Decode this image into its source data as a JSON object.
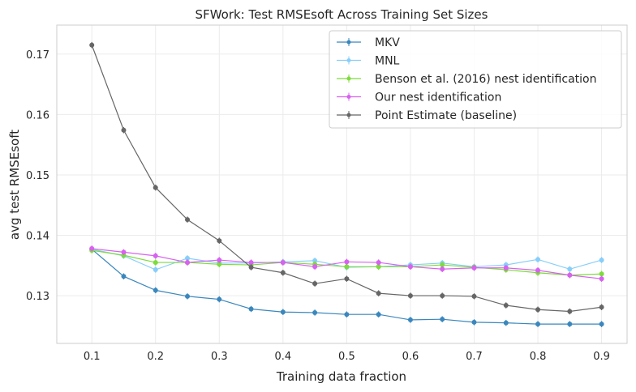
{
  "chart_data": {
    "type": "line",
    "title": "SFWork: Test RMSEsoft Across Training Set Sizes",
    "xlabel": "Training data fraction",
    "ylabel": "avg test RMSEsoft",
    "xlim": [
      0.045,
      0.94
    ],
    "ylim": [
      0.1221,
      0.1748
    ],
    "xticks": [
      "0.1",
      "0.2",
      "0.3",
      "0.4",
      "0.5",
      "0.6",
      "0.7",
      "0.8",
      "0.9"
    ],
    "yticks": [
      "0.13",
      "0.14",
      "0.15",
      "0.16",
      "0.17"
    ],
    "grid": true,
    "legend_position": "top-right",
    "error_bar": 0.0005,
    "x": [
      0.1,
      0.15,
      0.2,
      0.25,
      0.3,
      0.35,
      0.4,
      0.45,
      0.5,
      0.55,
      0.6,
      0.65,
      0.7,
      0.75,
      0.8,
      0.85,
      0.9
    ],
    "series": [
      {
        "name": "MKV",
        "color": "#3a87bd",
        "values": [
          0.1377,
          0.1332,
          0.1309,
          0.1299,
          0.1294,
          0.1278,
          0.1273,
          0.1272,
          0.1269,
          0.1269,
          0.126,
          0.1261,
          0.1256,
          0.1255,
          0.1253,
          0.1253,
          0.1253
        ]
      },
      {
        "name": "MNL",
        "color": "#87cefa",
        "values": [
          0.1377,
          0.1366,
          0.1343,
          0.1362,
          0.1354,
          0.1354,
          0.1356,
          0.1358,
          0.1347,
          0.1348,
          0.1351,
          0.1354,
          0.1348,
          0.1351,
          0.136,
          0.1344,
          0.1359
        ]
      },
      {
        "name": "Benson et al. (2016) nest identification",
        "color": "#7ddc3c",
        "values": [
          0.1375,
          0.1367,
          0.1355,
          0.1355,
          0.1352,
          0.1351,
          0.1355,
          0.1352,
          0.1348,
          0.1348,
          0.1348,
          0.1351,
          0.1347,
          0.1343,
          0.1338,
          0.1334,
          0.1336
        ]
      },
      {
        "name": "Our nest identification",
        "color": "#d861f0",
        "values": [
          0.1378,
          0.1372,
          0.1366,
          0.1355,
          0.1359,
          0.1355,
          0.1355,
          0.1348,
          0.1356,
          0.1355,
          0.1348,
          0.1344,
          0.1346,
          0.1346,
          0.1342,
          0.1334,
          0.1328
        ]
      },
      {
        "name": "Point Estimate (baseline)",
        "color": "#666666",
        "values": [
          0.1715,
          0.1574,
          0.1479,
          0.1426,
          0.1391,
          0.1347,
          0.1338,
          0.132,
          0.1328,
          0.1304,
          0.13,
          0.13,
          0.1299,
          0.1284,
          0.1277,
          0.1274,
          0.1281
        ]
      }
    ]
  }
}
